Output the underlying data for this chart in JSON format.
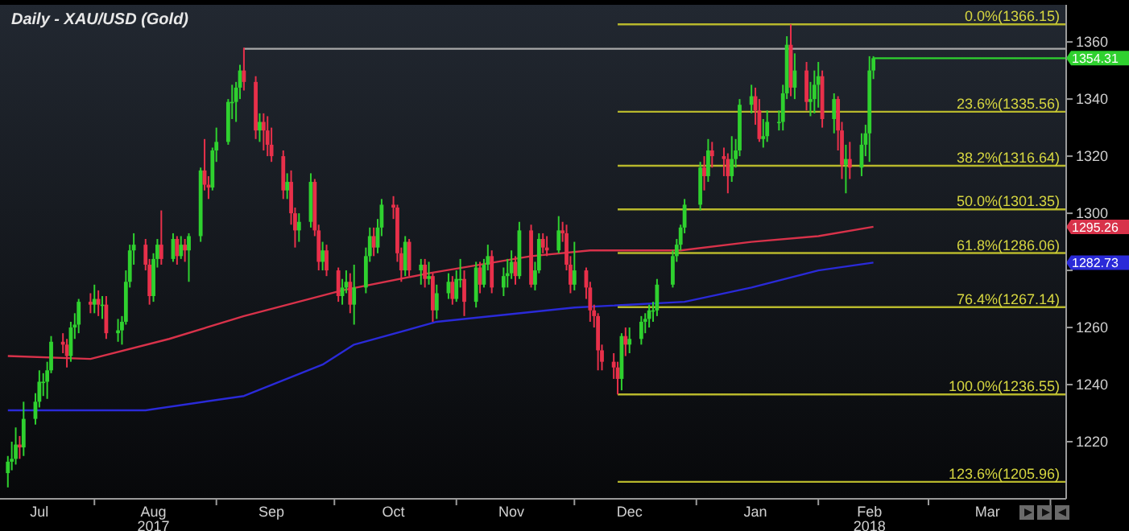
{
  "chart_data": {
    "type": "candlestick",
    "title": "Daily - XAU/USD (Gold)",
    "x": [
      "2017-07-10",
      "2017-07-11",
      "2017-07-12",
      "2017-07-13",
      "2017-07-14",
      "2017-07-17",
      "2017-07-18",
      "2017-07-19",
      "2017-07-20",
      "2017-07-21",
      "2017-07-24",
      "2017-07-25",
      "2017-07-26",
      "2017-07-27",
      "2017-07-28",
      "2017-07-31",
      "2017-08-01",
      "2017-08-02",
      "2017-08-03",
      "2017-08-04",
      "2017-08-07",
      "2017-08-08",
      "2017-08-09",
      "2017-08-10",
      "2017-08-11",
      "2017-08-14",
      "2017-08-15",
      "2017-08-16",
      "2017-08-17",
      "2017-08-18",
      "2017-08-21",
      "2017-08-22",
      "2017-08-23",
      "2017-08-24",
      "2017-08-25",
      "2017-08-28",
      "2017-08-29",
      "2017-08-30",
      "2017-08-31",
      "2017-09-01",
      "2017-09-04",
      "2017-09-05",
      "2017-09-06",
      "2017-09-07",
      "2017-09-08",
      "2017-09-11",
      "2017-09-12",
      "2017-09-13",
      "2017-09-14",
      "2017-09-15",
      "2017-09-18",
      "2017-09-19",
      "2017-09-20",
      "2017-09-21",
      "2017-09-22",
      "2017-09-25",
      "2017-09-26",
      "2017-09-27",
      "2017-09-28",
      "2017-09-29",
      "2017-10-02",
      "2017-10-03",
      "2017-10-04",
      "2017-10-05",
      "2017-10-06",
      "2017-10-09",
      "2017-10-10",
      "2017-10-11",
      "2017-10-12",
      "2017-10-13",
      "2017-10-16",
      "2017-10-17",
      "2017-10-18",
      "2017-10-19",
      "2017-10-20",
      "2017-10-23",
      "2017-10-24",
      "2017-10-25",
      "2017-10-26",
      "2017-10-27",
      "2017-10-30",
      "2017-10-31",
      "2017-11-01",
      "2017-11-02",
      "2017-11-03",
      "2017-11-06",
      "2017-11-07",
      "2017-11-08",
      "2017-11-09",
      "2017-11-10",
      "2017-11-13",
      "2017-11-14",
      "2017-11-15",
      "2017-11-16",
      "2017-11-17",
      "2017-11-20",
      "2017-11-21",
      "2017-11-22",
      "2017-11-23",
      "2017-11-24",
      "2017-11-27",
      "2017-11-28",
      "2017-11-29",
      "2017-11-30",
      "2017-12-01",
      "2017-12-04",
      "2017-12-05",
      "2017-12-06",
      "2017-12-07",
      "2017-12-08",
      "2017-12-11",
      "2017-12-12",
      "2017-12-13",
      "2017-12-14",
      "2017-12-15",
      "2017-12-18",
      "2017-12-19",
      "2017-12-20",
      "2017-12-21",
      "2017-12-22",
      "2017-12-26",
      "2017-12-27",
      "2017-12-28",
      "2017-12-29",
      "2018-01-02",
      "2018-01-03",
      "2018-01-04",
      "2018-01-05",
      "2018-01-08",
      "2018-01-09",
      "2018-01-10",
      "2018-01-11",
      "2018-01-12",
      "2018-01-15",
      "2018-01-16",
      "2018-01-17",
      "2018-01-18",
      "2018-01-19",
      "2018-01-22",
      "2018-01-23",
      "2018-01-24",
      "2018-01-25",
      "2018-01-26",
      "2018-01-29",
      "2018-01-30",
      "2018-01-31",
      "2018-02-01",
      "2018-02-02",
      "2018-02-05",
      "2018-02-06",
      "2018-02-07",
      "2018-02-08",
      "2018-02-09",
      "2018-02-12",
      "2018-02-13",
      "2018-02-14",
      "2018-02-15"
    ],
    "ohlc": [
      [
        1209,
        1215,
        1204,
        1213
      ],
      [
        1213,
        1220,
        1210,
        1214
      ],
      [
        1214,
        1225,
        1212,
        1219
      ],
      [
        1219,
        1222,
        1214,
        1218
      ],
      [
        1218,
        1234,
        1215,
        1228
      ],
      [
        1228,
        1237,
        1226,
        1234
      ],
      [
        1234,
        1245,
        1232,
        1241
      ],
      [
        1241,
        1244,
        1236,
        1241
      ],
      [
        1241,
        1248,
        1235,
        1245
      ],
      [
        1245,
        1257,
        1244,
        1255
      ],
      [
        1255,
        1258,
        1251,
        1254
      ],
      [
        1254,
        1256,
        1246,
        1250
      ],
      [
        1250,
        1262,
        1248,
        1260
      ],
      [
        1260,
        1265,
        1256,
        1261
      ],
      [
        1261,
        1270,
        1258,
        1269
      ],
      [
        1269,
        1272,
        1265,
        1268
      ],
      [
        1268,
        1275,
        1265,
        1270
      ],
      [
        1270,
        1273,
        1264,
        1268
      ],
      [
        1268,
        1271,
        1263,
        1268
      ],
      [
        1268,
        1271,
        1256,
        1258
      ],
      [
        1258,
        1263,
        1255,
        1259
      ],
      [
        1259,
        1264,
        1254,
        1262
      ],
      [
        1262,
        1280,
        1261,
        1276
      ],
      [
        1276,
        1289,
        1274,
        1287
      ],
      [
        1287,
        1293,
        1282,
        1289
      ],
      [
        1289,
        1291,
        1280,
        1282
      ],
      [
        1282,
        1284,
        1268,
        1271
      ],
      [
        1271,
        1286,
        1269,
        1284
      ],
      [
        1284,
        1291,
        1281,
        1289
      ],
      [
        1289,
        1301,
        1282,
        1284
      ],
      [
        1284,
        1293,
        1283,
        1291
      ],
      [
        1291,
        1292,
        1282,
        1285
      ],
      [
        1285,
        1292,
        1284,
        1289
      ],
      [
        1289,
        1291,
        1283,
        1287
      ],
      [
        1287,
        1293,
        1276,
        1292
      ],
      [
        1292,
        1316,
        1290,
        1315
      ],
      [
        1315,
        1326,
        1308,
        1310
      ],
      [
        1310,
        1313,
        1305,
        1309
      ],
      [
        1309,
        1323,
        1308,
        1322
      ],
      [
        1322,
        1330,
        1318,
        1325
      ],
      [
        1325,
        1340,
        1324,
        1339
      ],
      [
        1339,
        1345,
        1333,
        1339
      ],
      [
        1339,
        1346,
        1332,
        1344
      ],
      [
        1344,
        1352,
        1340,
        1350
      ],
      [
        1350,
        1358,
        1343,
        1346
      ],
      [
        1346,
        1348,
        1326,
        1329
      ],
      [
        1329,
        1335,
        1325,
        1332
      ],
      [
        1332,
        1335,
        1322,
        1329
      ],
      [
        1329,
        1334,
        1320,
        1324
      ],
      [
        1324,
        1330,
        1318,
        1320
      ],
      [
        1320,
        1322,
        1305,
        1308
      ],
      [
        1308,
        1314,
        1305,
        1311
      ],
      [
        1311,
        1315,
        1296,
        1300
      ],
      [
        1300,
        1302,
        1288,
        1294
      ],
      [
        1294,
        1300,
        1290,
        1297
      ],
      [
        1297,
        1314,
        1295,
        1311
      ],
      [
        1311,
        1312,
        1292,
        1294
      ],
      [
        1294,
        1296,
        1280,
        1283
      ],
      [
        1283,
        1290,
        1280,
        1287
      ],
      [
        1287,
        1289,
        1278,
        1280
      ],
      [
        1280,
        1281,
        1269,
        1271
      ],
      [
        1271,
        1277,
        1268,
        1274
      ],
      [
        1274,
        1280,
        1272,
        1276
      ],
      [
        1276,
        1279,
        1265,
        1268
      ],
      [
        1268,
        1282,
        1261,
        1274
      ],
      [
        1274,
        1288,
        1272,
        1285
      ],
      [
        1285,
        1295,
        1283,
        1292
      ],
      [
        1292,
        1295,
        1285,
        1288
      ],
      [
        1288,
        1298,
        1286,
        1295
      ],
      [
        1295,
        1305,
        1292,
        1303
      ],
      [
        1303,
        1306,
        1298,
        1302
      ],
      [
        1302,
        1303,
        1283,
        1286
      ],
      [
        1286,
        1288,
        1276,
        1280
      ],
      [
        1280,
        1292,
        1278,
        1290
      ],
      [
        1290,
        1291,
        1278,
        1280
      ],
      [
        1280,
        1284,
        1275,
        1282
      ],
      [
        1282,
        1284,
        1274,
        1277
      ],
      [
        1277,
        1283,
        1275,
        1278
      ],
      [
        1278,
        1279,
        1262,
        1266
      ],
      [
        1266,
        1275,
        1263,
        1272
      ],
      [
        1272,
        1279,
        1270,
        1276
      ],
      [
        1276,
        1278,
        1268,
        1270
      ],
      [
        1270,
        1280,
        1269,
        1277
      ],
      [
        1277,
        1284,
        1274,
        1277
      ],
      [
        1277,
        1280,
        1264,
        1269
      ],
      [
        1269,
        1283,
        1267,
        1281
      ],
      [
        1281,
        1283,
        1272,
        1275
      ],
      [
        1275,
        1284,
        1274,
        1282
      ],
      [
        1282,
        1289,
        1280,
        1285
      ],
      [
        1285,
        1287,
        1272,
        1274
      ],
      [
        1274,
        1281,
        1271,
        1278
      ],
      [
        1278,
        1284,
        1274,
        1279
      ],
      [
        1279,
        1287,
        1277,
        1283
      ],
      [
        1283,
        1285,
        1275,
        1278
      ],
      [
        1278,
        1297,
        1277,
        1294
      ],
      [
        1294,
        1296,
        1274,
        1275
      ],
      [
        1275,
        1283,
        1273,
        1280
      ],
      [
        1280,
        1293,
        1279,
        1291
      ],
      [
        1291,
        1293,
        1286,
        1288
      ],
      [
        1288,
        1292,
        1285,
        1287
      ],
      [
        1287,
        1299,
        1286,
        1294
      ],
      [
        1294,
        1297,
        1290,
        1293
      ],
      [
        1293,
        1296,
        1280,
        1282
      ],
      [
        1282,
        1285,
        1272,
        1275
      ],
      [
        1275,
        1290,
        1273,
        1280
      ],
      [
        1280,
        1281,
        1270,
        1274
      ],
      [
        1274,
        1276,
        1262,
        1266
      ],
      [
        1266,
        1268,
        1260,
        1264
      ],
      [
        1264,
        1265,
        1245,
        1252
      ],
      [
        1252,
        1254,
        1245,
        1248
      ],
      [
        1248,
        1251,
        1242,
        1246
      ],
      [
        1246,
        1248,
        1236.55,
        1242
      ],
      [
        1242,
        1258,
        1238,
        1257
      ],
      [
        1257,
        1260,
        1250,
        1254
      ],
      [
        1254,
        1260,
        1251,
        1256
      ],
      [
        1256,
        1264,
        1254,
        1262
      ],
      [
        1262,
        1265,
        1258,
        1263
      ],
      [
        1263,
        1268,
        1260,
        1266
      ],
      [
        1266,
        1269,
        1262,
        1266
      ],
      [
        1266,
        1277,
        1264,
        1275
      ],
      [
        1275,
        1287,
        1274,
        1285
      ],
      [
        1285,
        1291,
        1283,
        1289
      ],
      [
        1289,
        1296,
        1287,
        1295
      ],
      [
        1295,
        1305,
        1293,
        1303
      ],
      [
        1303,
        1318,
        1301,
        1316
      ],
      [
        1316,
        1320,
        1308,
        1313
      ],
      [
        1313,
        1326,
        1311,
        1322
      ],
      [
        1322,
        1325,
        1316,
        1320
      ],
      [
        1320,
        1323,
        1313,
        1319
      ],
      [
        1319,
        1321,
        1307,
        1313
      ],
      [
        1313,
        1327,
        1311,
        1319
      ],
      [
        1319,
        1326,
        1316,
        1322
      ],
      [
        1322,
        1340,
        1320,
        1338
      ],
      [
        1338,
        1345,
        1335,
        1341
      ],
      [
        1341,
        1344,
        1331,
        1336
      ],
      [
        1336,
        1340,
        1325,
        1326
      ],
      [
        1326,
        1333,
        1323,
        1327
      ],
      [
        1327,
        1336,
        1325,
        1332
      ],
      [
        1332,
        1336,
        1329,
        1332
      ],
      [
        1332,
        1345,
        1329,
        1342
      ],
      [
        1342,
        1362,
        1340,
        1359
      ],
      [
        1359,
        1366.15,
        1341,
        1344
      ],
      [
        1344,
        1356,
        1340,
        1350
      ],
      [
        1350,
        1353,
        1336,
        1339
      ],
      [
        1339,
        1346,
        1334,
        1340
      ],
      [
        1340,
        1350,
        1335,
        1345
      ],
      [
        1345,
        1353,
        1337,
        1348
      ],
      [
        1348,
        1350,
        1330,
        1333
      ],
      [
        1333,
        1342,
        1328,
        1340
      ],
      [
        1340,
        1341,
        1322,
        1329
      ],
      [
        1329,
        1332,
        1312,
        1317
      ],
      [
        1317,
        1324,
        1307,
        1319
      ],
      [
        1319,
        1325,
        1312,
        1316
      ],
      [
        1316,
        1328,
        1313,
        1324
      ],
      [
        1324,
        1331,
        1320,
        1328
      ],
      [
        1328,
        1355,
        1318,
        1350
      ],
      [
        1350,
        1355,
        1347,
        1354.31
      ]
    ],
    "series": [
      {
        "type": "line",
        "name": "1295.26",
        "color": "#d8324a",
        "x": [
          "2017-07-10",
          "2017-07-31",
          "2017-08-20",
          "2017-09-08",
          "2017-10-03",
          "2017-10-25",
          "2017-11-20",
          "2017-12-05",
          "2017-12-28",
          "2018-01-15",
          "2018-02-01",
          "2018-02-15"
        ],
        "values": [
          1250,
          1249,
          1256,
          1264,
          1273,
          1279,
          1285,
          1287,
          1287,
          1290,
          1292,
          1295.26
        ]
      },
      {
        "type": "line",
        "name": "1282.73",
        "color": "#2a2ad8",
        "x": [
          "2017-07-10",
          "2017-08-14",
          "2017-09-08",
          "2017-09-28",
          "2017-10-06",
          "2017-10-27",
          "2017-12-01",
          "2017-12-29",
          "2018-01-15",
          "2018-02-01",
          "2018-02-15"
        ],
        "values": [
          1231,
          1231,
          1236,
          1247,
          1254,
          1262,
          1267,
          1269,
          1274,
          1280,
          1282.73
        ]
      },
      {
        "type": "line",
        "color": "#a8a8a8",
        "x": [
          "2017-09-08",
          "2018-04-05"
        ],
        "values": [
          1357.6,
          1357.6
        ]
      },
      {
        "type": "line",
        "color": "#2fd12f",
        "x": [
          "2018-02-15",
          "2018-04-05"
        ],
        "values": [
          1354.31,
          1354.31
        ]
      },
      {
        "type": "line",
        "name": "0.0%(1366.15)",
        "color": "#b8b82c",
        "x": [
          "2017-12-12",
          "2018-04-05"
        ],
        "values": [
          1366.15,
          1366.15
        ]
      },
      {
        "type": "line",
        "name": "23.6%(1335.56)",
        "color": "#b8b82c",
        "x": [
          "2017-12-12",
          "2018-04-05"
        ],
        "values": [
          1335.56,
          1335.56
        ]
      },
      {
        "type": "line",
        "name": "38.2%(1316.64)",
        "color": "#b8b82c",
        "x": [
          "2017-12-12",
          "2018-04-05"
        ],
        "values": [
          1316.64,
          1316.64
        ]
      },
      {
        "type": "line",
        "name": "50.0%(1301.35)",
        "color": "#b8b82c",
        "x": [
          "2017-12-12",
          "2018-04-05"
        ],
        "values": [
          1301.35,
          1301.35
        ]
      },
      {
        "type": "line",
        "name": "61.8%(1286.06)",
        "color": "#b8b82c",
        "x": [
          "2017-12-12",
          "2018-04-05"
        ],
        "values": [
          1286.06,
          1286.06
        ]
      },
      {
        "type": "line",
        "name": "76.4%(1267.14)",
        "color": "#b8b82c",
        "x": [
          "2017-12-12",
          "2018-04-05"
        ],
        "values": [
          1267.14,
          1267.14
        ]
      },
      {
        "type": "line",
        "name": "100.0%(1236.55)",
        "color": "#b8b82c",
        "x": [
          "2017-12-12",
          "2018-04-05"
        ],
        "values": [
          1236.55,
          1236.55
        ]
      },
      {
        "type": "line",
        "name": "123.6%(1205.96)",
        "color": "#b8b82c",
        "x": [
          "2017-12-12",
          "2018-04-05"
        ],
        "values": [
          1205.96,
          1205.96
        ]
      }
    ],
    "annotations": [
      {
        "text": "1354.31",
        "x": "2018-04-05",
        "y": 1354.31
      }
    ],
    "xlim": [
      "2017-07-08",
      "2018-04-05"
    ],
    "xticks": [
      {
        "value": "2017-07-18",
        "label": "Jul"
      },
      {
        "value": "2017-08-01",
        "label": null
      },
      {
        "value": "2017-08-16",
        "label": "Aug\n2017"
      },
      {
        "value": "2017-09-01",
        "label": null
      },
      {
        "value": "2017-09-15",
        "label": "Sep"
      },
      {
        "value": "2017-10-01",
        "label": null
      },
      {
        "value": "2017-10-16",
        "label": "Oct"
      },
      {
        "value": "2017-11-01",
        "label": null
      },
      {
        "value": "2017-11-15",
        "label": "Nov"
      },
      {
        "value": "2017-12-01",
        "label": null
      },
      {
        "value": "2017-12-15",
        "label": "Dec"
      },
      {
        "value": "2018-01-01",
        "label": null
      },
      {
        "value": "2018-01-16",
        "label": "Jan"
      },
      {
        "value": "2018-02-01",
        "label": null
      },
      {
        "value": "2018-02-14",
        "label": "Feb\n2018"
      },
      {
        "value": "2018-03-01",
        "label": null
      },
      {
        "value": "2018-03-16",
        "label": "Mar"
      },
      {
        "value": "2018-04-01",
        "label": null
      }
    ],
    "ylim": [
      1200,
      1373
    ],
    "yticks": [
      1220,
      1240,
      1260,
      {
        "value": 1280,
        "label": null
      },
      1300,
      1320,
      1340,
      1360
    ]
  }
}
